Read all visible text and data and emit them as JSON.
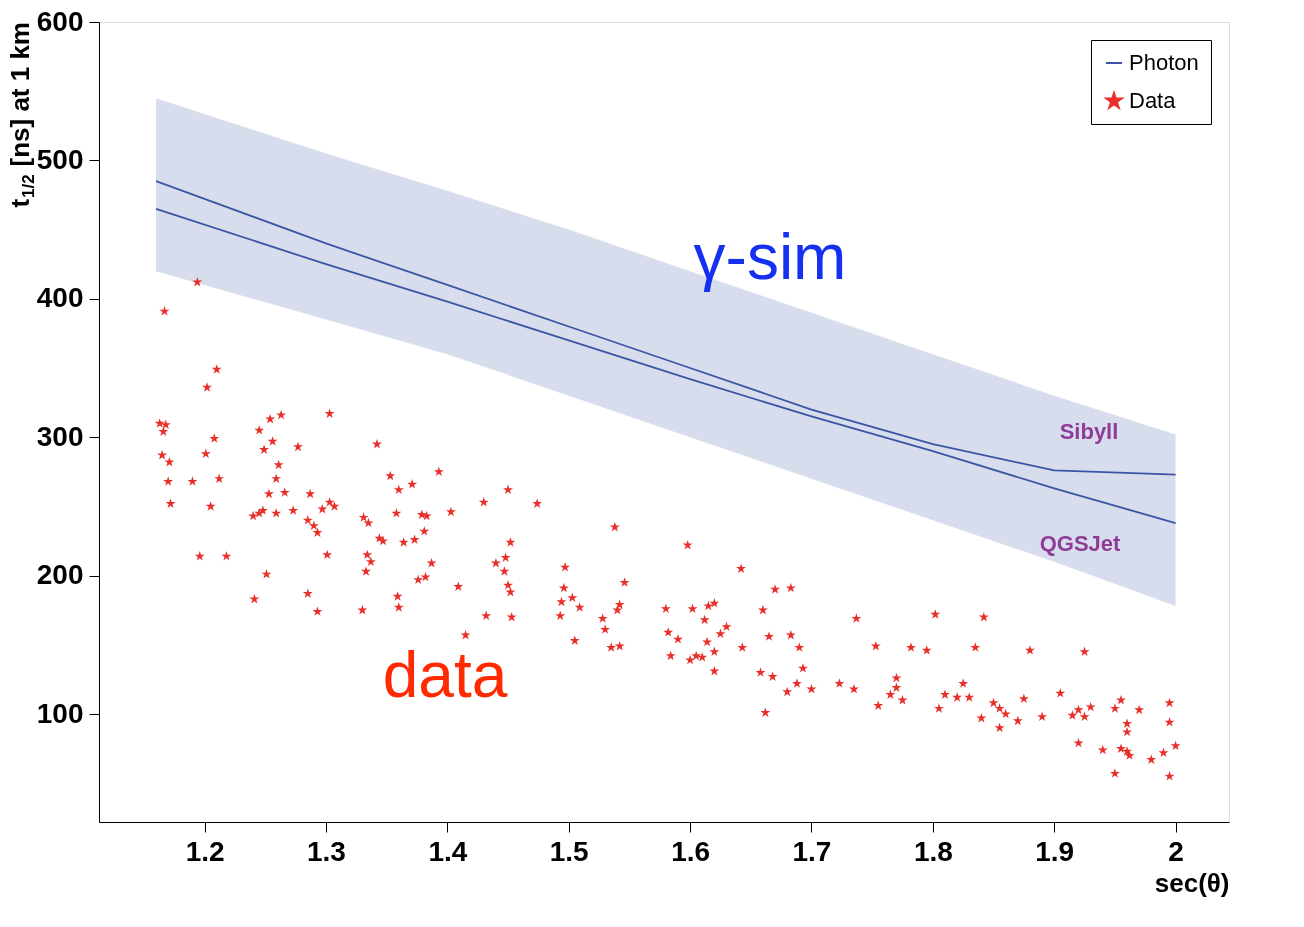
{
  "chart_data": {
    "type": "scatter",
    "xlabel": "sec(θ)",
    "ylabel": "t$_{1/2}$ [ns] at 1 km",
    "xlim": [
      1.113,
      2.044
    ],
    "xticks": [
      1.2,
      1.3,
      1.4,
      1.5,
      1.6,
      1.7,
      1.8,
      1.9,
      2
    ],
    "ylim": [
      22,
      600
    ],
    "yticks": [
      100,
      200,
      300,
      400,
      500,
      600
    ],
    "legend": "top right",
    "annotations": [
      "γ-sim",
      "data",
      "Sibyll",
      "QGSJet"
    ],
    "series": [
      {
        "name": "Photon",
        "type": "line",
        "color": "#3b54a5",
        "x": [
          1.16,
          1.3,
          1.4,
          1.5,
          1.6,
          1.7,
          1.8,
          1.9,
          2.0
        ],
        "values": [
          485,
          440,
          410,
          380,
          350,
          320,
          295,
          276,
          273
        ],
        "lower": [
          420,
          385,
          360,
          330,
          300,
          270,
          240,
          210,
          178
        ],
        "upper": [
          545,
          505,
          478,
          450,
          420,
          390,
          360,
          330,
          302
        ]
      },
      {
        "type": "line",
        "color": "#3b54a5",
        "x": [
          1.16,
          1.3,
          1.4,
          1.5,
          1.6,
          1.7,
          1.8,
          1.9,
          2.0
        ],
        "values": [
          465,
          425,
          398,
          370,
          342,
          315,
          290,
          263,
          238
        ]
      },
      {
        "name": "Data",
        "marker": "star",
        "color": "#e8302a",
        "x": [
          1.194,
          1.167,
          1.21,
          1.202,
          1.163,
          1.168,
          1.166,
          1.254,
          1.263,
          1.303,
          1.342,
          1.208,
          1.201,
          1.165,
          1.171,
          1.212,
          1.17,
          1.19,
          1.261,
          1.259,
          1.245,
          1.249,
          1.256,
          1.277,
          1.172,
          1.205,
          1.196,
          1.218,
          1.24,
          1.245,
          1.248,
          1.253,
          1.259,
          1.266,
          1.273,
          1.285,
          1.29,
          1.287,
          1.293,
          1.297,
          1.303,
          1.307,
          1.301,
          1.241,
          1.251,
          1.285,
          1.293,
          1.33,
          1.331,
          1.335,
          1.337,
          1.334,
          1.333,
          1.347,
          1.344,
          1.353,
          1.36,
          1.371,
          1.358,
          1.364,
          1.373,
          1.381,
          1.383,
          1.379,
          1.387,
          1.382,
          1.376,
          1.359,
          1.36,
          1.393,
          1.403,
          1.409,
          1.43,
          1.44,
          1.448,
          1.452,
          1.45,
          1.447,
          1.45,
          1.452,
          1.453,
          1.432,
          1.415,
          1.474,
          1.493,
          1.494,
          1.496,
          1.497,
          1.503,
          1.509,
          1.505,
          1.538,
          1.528,
          1.53,
          1.54,
          1.542,
          1.546,
          1.535,
          1.542,
          1.58,
          1.582,
          1.584,
          1.59,
          1.598,
          1.602,
          1.612,
          1.615,
          1.62,
          1.614,
          1.62,
          1.625,
          1.63,
          1.6,
          1.605,
          1.61,
          1.62,
          1.642,
          1.643,
          1.66,
          1.665,
          1.67,
          1.683,
          1.658,
          1.668,
          1.662,
          1.683,
          1.69,
          1.693,
          1.7,
          1.68,
          1.688,
          1.723,
          1.735,
          1.737,
          1.753,
          1.755,
          1.765,
          1.77,
          1.77,
          1.782,
          1.775,
          1.795,
          1.802,
          1.81,
          1.805,
          1.82,
          1.825,
          1.83,
          1.835,
          1.84,
          1.842,
          1.85,
          1.855,
          1.855,
          1.86,
          1.87,
          1.875,
          1.88,
          1.89,
          1.905,
          1.915,
          1.92,
          1.925,
          1.92,
          1.925,
          1.93,
          1.94,
          1.95,
          1.955,
          1.96,
          1.96,
          1.955,
          1.96,
          1.962,
          1.97,
          1.95,
          1.98,
          1.99,
          1.995,
          1.995,
          2.0,
          1.995
        ],
        "values": [
          412,
          391,
          349,
          336,
          310,
          309,
          304,
          313,
          316,
          317,
          295,
          299,
          288,
          287,
          282,
          270,
          268,
          268,
          280,
          270,
          305,
          291,
          297,
          293,
          252,
          250,
          214,
          214,
          243,
          245,
          247,
          259,
          245,
          260,
          247,
          240,
          236,
          259,
          231,
          248,
          253,
          250,
          215,
          183,
          201,
          187,
          174,
          175,
          242,
          238,
          210,
          215,
          203,
          225,
          227,
          272,
          262,
          266,
          245,
          224,
          226,
          232,
          243,
          244,
          209,
          199,
          197,
          185,
          177,
          275,
          246,
          192,
          253,
          209,
          213,
          224,
          262,
          203,
          193,
          188,
          170,
          171,
          157,
          252,
          171,
          181,
          191,
          206,
          184,
          177,
          153,
          235,
          169,
          161,
          175,
          179,
          195,
          148,
          149,
          176,
          159,
          142,
          154,
          222,
          176,
          168,
          178,
          180,
          152,
          145,
          158,
          163,
          139,
          142,
          141,
          131,
          205,
          148,
          175,
          156,
          190,
          191,
          130,
          127,
          101,
          157,
          148,
          133,
          118,
          116,
          122,
          122,
          118,
          169,
          149,
          106,
          114,
          119,
          126,
          148,
          110,
          146,
          172,
          114,
          104,
          112,
          122,
          112,
          148,
          97,
          170,
          108,
          104,
          90,
          100,
          95,
          111,
          146,
          98,
          115,
          99,
          103,
          98,
          79,
          145,
          105,
          74,
          104,
          110,
          93,
          87,
          75,
          73,
          70,
          103,
          57,
          67,
          72,
          108,
          94,
          77,
          55
        ]
      }
    ]
  }
}
